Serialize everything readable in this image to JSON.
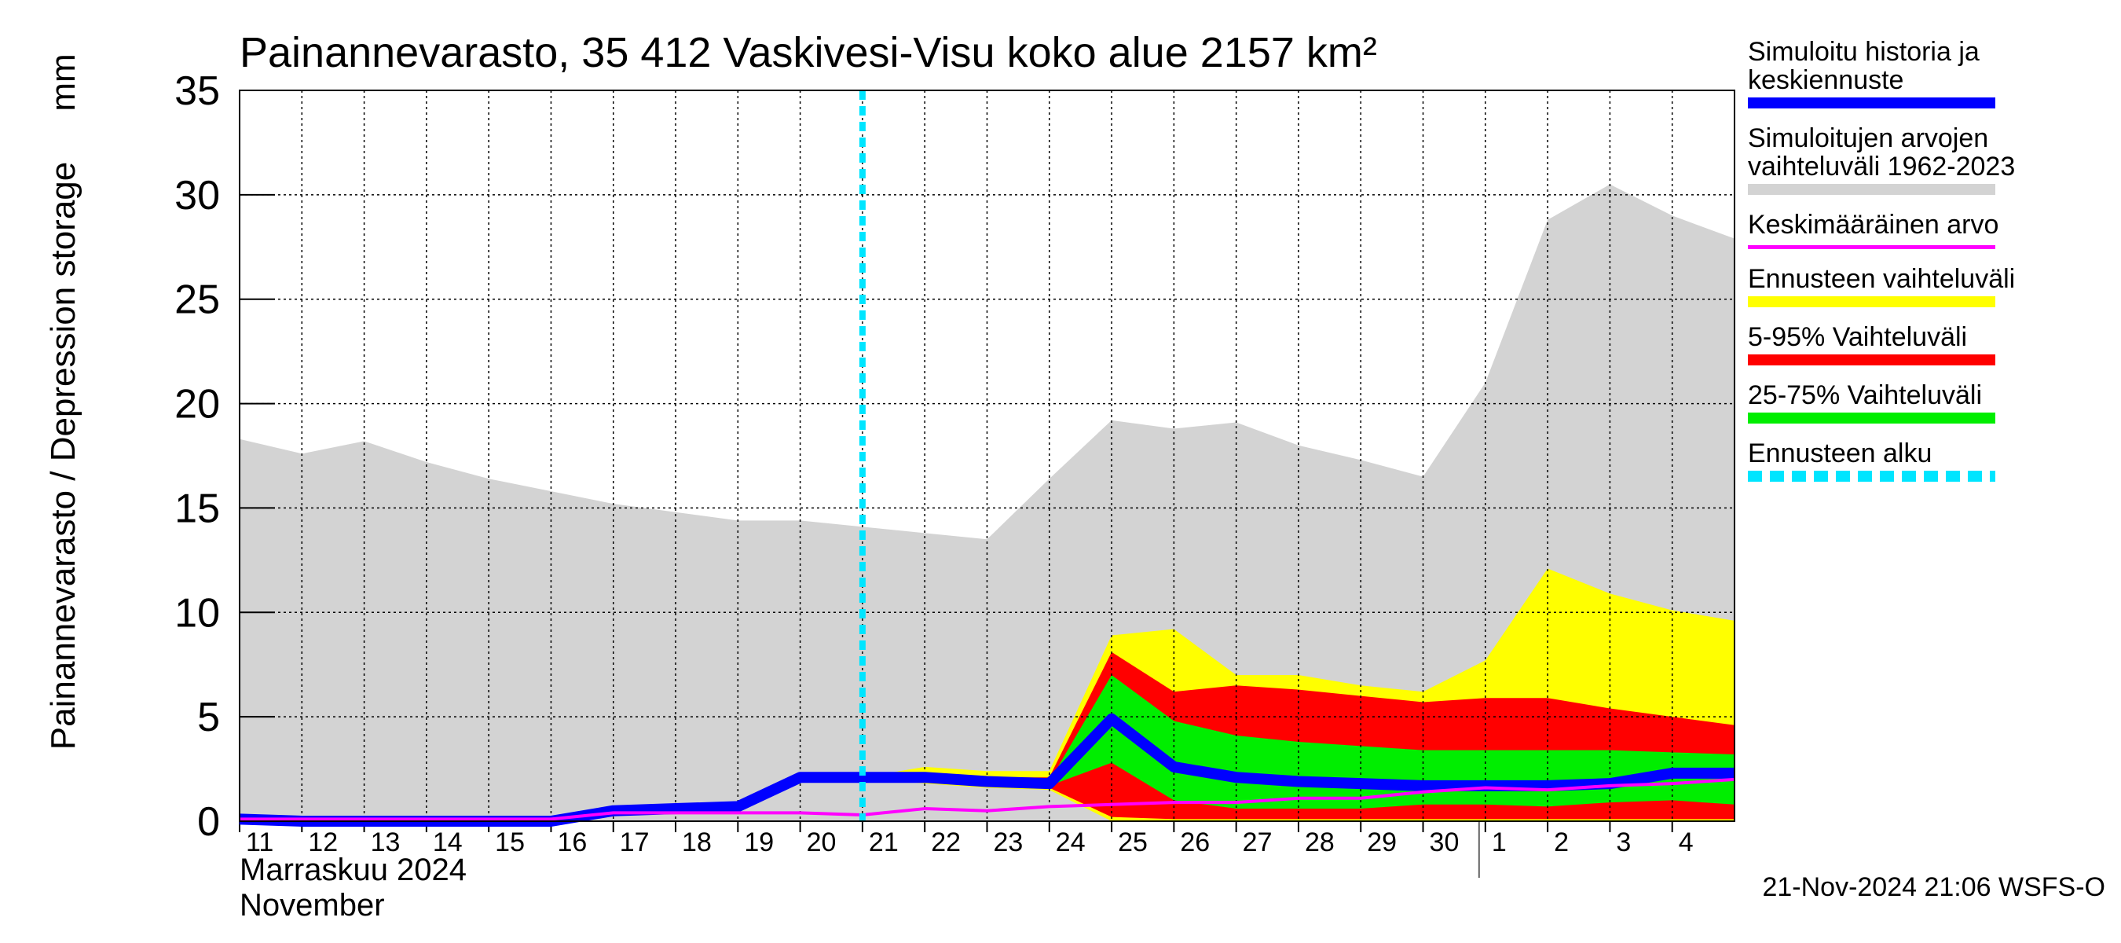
{
  "chart_data": {
    "type": "band-line",
    "title": "Painannevarasto, 35 412 Vaskivesi-Visu koko alue 2157 km²",
    "y_label": "Painannevarasto / Depression storage",
    "y_unit": "mm",
    "x_label": [
      "Marraskuu 2024",
      "November"
    ],
    "footer": "21-Nov-2024 21:06 WSFS-O",
    "categories": [
      "11",
      "12",
      "13",
      "14",
      "15",
      "16",
      "17",
      "18",
      "19",
      "20",
      "21",
      "22",
      "23",
      "24",
      "25",
      "26",
      "27",
      "28",
      "29",
      "30",
      "1",
      "2",
      "3",
      "4",
      null
    ],
    "month_start_index": 20,
    "ylim": [
      0,
      35
    ],
    "yticks": [
      0,
      5,
      10,
      15,
      20,
      25,
      30,
      35
    ],
    "grid": true,
    "series": [
      {
        "name": "Simuloitu historia ja keskiennuste",
        "kind": "line",
        "color": "#0000ff",
        "values": [
          0.1,
          0.0,
          0.0,
          0.0,
          0.0,
          0.0,
          0.5,
          0.6,
          0.7,
          2.1,
          2.1,
          2.1,
          1.9,
          1.8,
          4.9,
          2.6,
          2.1,
          1.9,
          1.8,
          1.7,
          1.7,
          1.7,
          1.8,
          2.3,
          2.3
        ]
      },
      {
        "name": "Simuloitujen arvojen vaihteluväli 1962-2023",
        "kind": "band",
        "color": "#d3d3d3",
        "values": [
          18.3,
          17.6,
          18.2,
          17.2,
          16.4,
          15.8,
          15.2,
          14.8,
          14.4,
          14.4,
          14.1,
          13.8,
          13.5,
          16.4,
          19.2,
          18.8,
          19.1,
          18.0,
          17.3,
          16.5,
          21.0,
          28.8,
          30.5,
          29.0,
          27.9
        ]
      },
      {
        "name": "Keskimääräinen arvo",
        "kind": "line",
        "color": "#ff00ff",
        "values": [
          0.1,
          0.1,
          0.1,
          0.1,
          0.1,
          0.1,
          0.4,
          0.4,
          0.4,
          0.4,
          0.3,
          0.6,
          0.5,
          0.7,
          0.8,
          0.9,
          0.9,
          1.1,
          1.1,
          1.4,
          1.6,
          1.5,
          1.7,
          1.8,
          2.0
        ]
      },
      {
        "name": "Ennusteen vaihteluväli",
        "kind": "band",
        "color": "#ffff00",
        "values": [
          null,
          null,
          null,
          null,
          null,
          null,
          null,
          null,
          null,
          null,
          2.1,
          2.6,
          2.4,
          2.4,
          8.9,
          9.2,
          7.0,
          7.0,
          6.5,
          6.2,
          7.7,
          12.1,
          10.9,
          10.1,
          9.6
        ],
        "lower": [
          null,
          null,
          null,
          null,
          null,
          null,
          null,
          null,
          null,
          null,
          2.1,
          1.8,
          1.6,
          1.5,
          0,
          0,
          0,
          0,
          0,
          0,
          0,
          0,
          0,
          0,
          0
        ]
      },
      {
        "name": "5-95% Vaihteluväli",
        "kind": "band",
        "color": "#ff0000",
        "values": [
          null,
          null,
          null,
          null,
          null,
          null,
          null,
          null,
          null,
          null,
          2.1,
          2.3,
          2.1,
          2.1,
          8.1,
          6.2,
          6.5,
          6.3,
          6.0,
          5.7,
          5.9,
          5.9,
          5.4,
          5.0,
          4.6
        ],
        "lower": [
          null,
          null,
          null,
          null,
          null,
          null,
          null,
          null,
          null,
          null,
          2.1,
          1.9,
          1.7,
          1.6,
          0.2,
          0.1,
          0.1,
          0.1,
          0.1,
          0.1,
          0.1,
          0.1,
          0.1,
          0.1,
          0.1
        ]
      },
      {
        "name": "25-75% Vaihteluväli",
        "kind": "band",
        "color": "#00ee00",
        "values": [
          null,
          null,
          null,
          null,
          null,
          null,
          null,
          null,
          null,
          null,
          2.1,
          2.2,
          2.0,
          1.9,
          7.0,
          4.8,
          4.1,
          3.8,
          3.6,
          3.4,
          3.4,
          3.4,
          3.4,
          3.3,
          3.2
        ],
        "lower": [
          null,
          null,
          null,
          null,
          null,
          null,
          null,
          null,
          null,
          null,
          2.1,
          2.0,
          1.8,
          1.7,
          2.8,
          1.0,
          0.6,
          0.6,
          0.6,
          0.8,
          0.8,
          0.7,
          0.9,
          1.0,
          0.8
        ]
      },
      {
        "name": "Ennusteen alku",
        "kind": "vline",
        "color": "#00e5ff",
        "at_index": 10
      }
    ]
  }
}
